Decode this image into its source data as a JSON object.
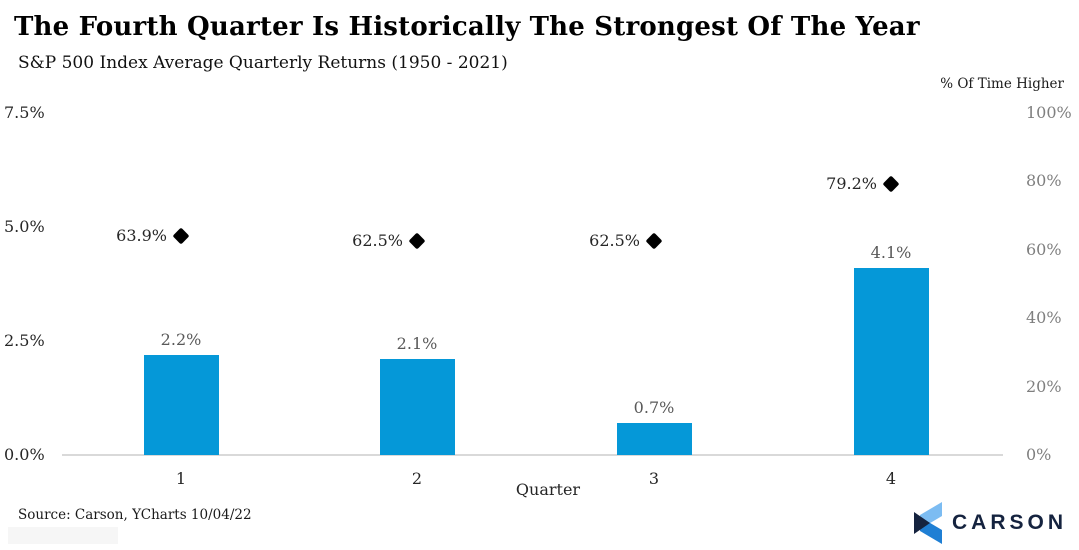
{
  "chart_data": {
    "type": "bar",
    "title": "The Fourth Quarter Is Historically The Strongest Of The Year",
    "subtitle": "S&P 500 Index Average Quarterly Returns (1950 - 2021)",
    "xlabel": "Quarter",
    "categories": [
      "1",
      "2",
      "3",
      "4"
    ],
    "series": [
      {
        "name": "Average Quarterly Return",
        "type": "bar",
        "axis": "left",
        "values": [
          2.2,
          2.1,
          0.7,
          4.1
        ],
        "labels": [
          "2.2%",
          "2.1%",
          "0.7%",
          "4.1%"
        ],
        "color": "#0598d8"
      },
      {
        "name": "% Of Time Higher",
        "type": "scatter-diamond",
        "axis": "right",
        "values": [
          63.9,
          62.5,
          62.5,
          79.2
        ],
        "labels": [
          "63.9%",
          "62.5%",
          "62.5%",
          "79.2%"
        ],
        "color": "#000000"
      }
    ],
    "left_axis": {
      "ticks": [
        "0.0%",
        "2.5%",
        "5.0%",
        "7.5%"
      ],
      "tick_values": [
        0,
        2.5,
        5.0,
        7.5
      ],
      "range": [
        0,
        7.5
      ]
    },
    "right_axis": {
      "title": "% Of Time Higher",
      "ticks": [
        "0%",
        "20%",
        "40%",
        "60%",
        "80%",
        "100%"
      ],
      "tick_values": [
        0,
        20,
        40,
        60,
        80,
        100
      ],
      "range": [
        0,
        100
      ]
    },
    "grid": "off",
    "legend": "none"
  },
  "footer": {
    "source": "Source: Carson, YCharts 10/04/22",
    "logo_text": "CARSON"
  },
  "colors": {
    "bar": "#0598d8",
    "diamond": "#000000",
    "axis_line": "#d9d9d9",
    "left_tick": "#262626",
    "right_tick": "#7f7f7f",
    "bar_label": "#595959",
    "logo_navy": "#15233f",
    "logo_light_blue": "#7cbcf2",
    "logo_mid_blue": "#1f7fd4"
  }
}
